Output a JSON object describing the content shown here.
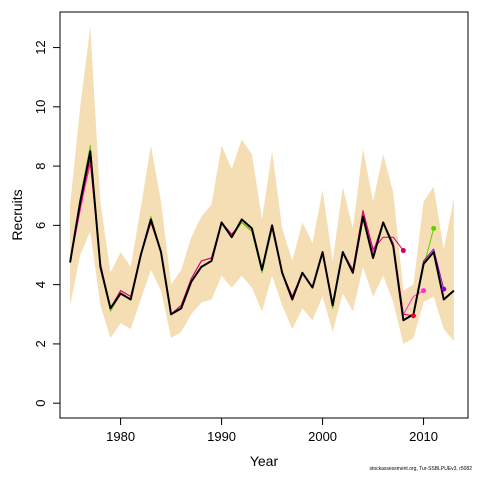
{
  "chart_data": {
    "type": "line",
    "title": "",
    "xlabel": "Year",
    "ylabel": "Recruits",
    "xlim": [
      1974.0,
      2014.4
    ],
    "ylim": [
      -0.5,
      13.2
    ],
    "xticks": [
      1980,
      1990,
      2000,
      2010
    ],
    "yticks": [
      0,
      2,
      4,
      6,
      8,
      10,
      12
    ],
    "grid": false,
    "band": {
      "color": "#f5deb3",
      "x": [
        1975,
        1976,
        1977,
        1978,
        1979,
        1980,
        1981,
        1982,
        1983,
        1984,
        1985,
        1986,
        1987,
        1988,
        1989,
        1990,
        1991,
        1992,
        1993,
        1994,
        1995,
        1996,
        1997,
        1998,
        1999,
        2000,
        2001,
        2002,
        2003,
        2004,
        2005,
        2006,
        2007,
        2008,
        2009,
        2010,
        2011,
        2012,
        2013
      ],
      "upper": [
        6.7,
        10.0,
        12.7,
        6.8,
        4.4,
        5.1,
        4.6,
        6.6,
        8.7,
        6.8,
        4.0,
        4.5,
        5.6,
        6.3,
        6.7,
        8.7,
        7.9,
        8.9,
        8.4,
        6.2,
        8.5,
        5.9,
        4.8,
        6.1,
        5.4,
        7.2,
        4.8,
        7.3,
        5.9,
        8.6,
        6.8,
        8.4,
        7.1,
        3.8,
        4.0,
        6.8,
        7.3,
        5.2,
        6.9
      ],
      "lower": [
        3.3,
        5.0,
        5.8,
        3.3,
        2.2,
        2.7,
        2.5,
        3.5,
        4.5,
        3.8,
        2.2,
        2.4,
        3.0,
        3.4,
        3.5,
        4.3,
        3.9,
        4.3,
        3.9,
        3.1,
        4.3,
        3.3,
        2.5,
        3.2,
        2.8,
        3.6,
        2.4,
        3.7,
        3.1,
        4.6,
        3.6,
        4.3,
        3.4,
        2.0,
        2.2,
        3.4,
        3.6,
        2.5,
        2.1
      ]
    },
    "series": [
      {
        "color": "#000000",
        "x": [
          1975,
          1976,
          1977,
          1978,
          1979,
          1980,
          1981,
          1982,
          1983,
          1984,
          1985,
          1986,
          1987,
          1988,
          1989,
          1990,
          1991,
          1992,
          1993,
          1994,
          1995,
          1996,
          1997,
          1998,
          1999,
          2000,
          2001,
          2002,
          2003,
          2004,
          2005,
          2006,
          2007,
          2008,
          2009,
          2010,
          2011,
          2012,
          2013
        ],
        "y": [
          4.75,
          6.8,
          8.5,
          4.6,
          3.2,
          3.7,
          3.5,
          5.0,
          6.2,
          5.1,
          3.0,
          3.2,
          4.1,
          4.6,
          4.8,
          6.1,
          5.6,
          6.2,
          5.9,
          4.5,
          6.0,
          4.4,
          3.5,
          4.4,
          3.9,
          5.1,
          3.3,
          5.1,
          4.4,
          6.3,
          4.9,
          6.1,
          5.3,
          2.8,
          3.0,
          4.7,
          5.1,
          3.5,
          3.8
        ]
      },
      {
        "color": "#e8003a",
        "x": [
          1975,
          1976,
          1977,
          1978,
          1979,
          1980,
          1981,
          1982,
          1983,
          1984,
          1985,
          1986,
          1987,
          1988,
          1989,
          1990,
          1991,
          1992,
          1993,
          1994,
          1995,
          1996,
          1997,
          1998,
          1999,
          2000,
          2001,
          2002,
          2003,
          2004,
          2005,
          2006,
          2007,
          2008,
          2009
        ],
        "y": [
          4.75,
          6.6,
          8.1,
          4.7,
          3.2,
          3.8,
          3.6,
          5.0,
          6.1,
          5.1,
          3.0,
          3.3,
          4.2,
          4.8,
          4.9,
          6.1,
          5.7,
          6.1,
          5.8,
          4.5,
          5.9,
          4.4,
          3.6,
          4.4,
          3.9,
          5.1,
          3.3,
          5.1,
          4.5,
          6.4,
          5.1,
          6.1,
          5.4,
          3.0,
          2.95
        ]
      },
      {
        "color": "#ff33cc",
        "x": [
          1975,
          1976,
          1977,
          1978,
          1979,
          1980,
          1981,
          1982,
          1983,
          1984,
          1985,
          1986,
          1987,
          1988,
          1989,
          1990,
          1991,
          1992,
          1993,
          1994,
          1995,
          1996,
          1997,
          1998,
          1999,
          2000,
          2001,
          2002,
          2003,
          2004,
          2005,
          2006,
          2007,
          2008,
          2009,
          2010
        ],
        "y": [
          4.75,
          6.5,
          8.2,
          4.7,
          3.2,
          3.8,
          3.6,
          5.0,
          6.1,
          5.1,
          3.0,
          3.3,
          4.2,
          4.8,
          4.9,
          6.1,
          5.7,
          6.1,
          5.8,
          4.5,
          5.9,
          4.4,
          3.6,
          4.4,
          3.9,
          5.1,
          3.3,
          5.1,
          4.5,
          6.4,
          5.1,
          6.1,
          5.4,
          3.0,
          3.6,
          3.8
        ]
      },
      {
        "color": "#cc0066",
        "x": [
          1975,
          1976,
          1977,
          1978,
          1979,
          1980,
          1981,
          1982,
          1983,
          1984,
          1985,
          1986,
          1987,
          1988,
          1989,
          1990,
          1991,
          1992,
          1993,
          1994,
          1995,
          1996,
          1997,
          1998,
          1999,
          2000,
          2001,
          2002,
          2003,
          2004,
          2005,
          2006,
          2007,
          2008
        ],
        "y": [
          4.75,
          6.6,
          8.3,
          4.7,
          3.2,
          3.8,
          3.6,
          5.0,
          6.1,
          5.1,
          3.0,
          3.3,
          4.2,
          4.8,
          4.9,
          6.1,
          5.7,
          6.1,
          5.8,
          4.5,
          5.9,
          4.4,
          3.6,
          4.4,
          3.9,
          5.1,
          3.3,
          5.1,
          4.5,
          6.5,
          5.2,
          5.6,
          5.6,
          5.15
        ]
      },
      {
        "color": "#66cc00",
        "x": [
          1975,
          1976,
          1977,
          1978,
          1979,
          1980,
          1981,
          1982,
          1983,
          1984,
          1985,
          1986,
          1987,
          1988,
          1989,
          1990,
          1991,
          1992,
          1993,
          1994,
          1995,
          1996,
          1997,
          1998,
          1999,
          2000,
          2001,
          2002,
          2003,
          2004,
          2005,
          2006,
          2007,
          2008,
          2009,
          2010,
          2011
        ],
        "y": [
          4.75,
          6.9,
          8.7,
          4.6,
          3.1,
          3.7,
          3.5,
          5.0,
          6.3,
          5.1,
          3.0,
          3.2,
          4.1,
          4.6,
          4.8,
          6.1,
          5.6,
          6.1,
          5.8,
          4.4,
          5.9,
          4.4,
          3.5,
          4.4,
          3.9,
          5.1,
          3.2,
          5.1,
          4.4,
          6.2,
          4.9,
          6.1,
          5.3,
          2.8,
          3.0,
          4.6,
          5.9
        ]
      },
      {
        "color": "#8800cc",
        "x": [
          1975,
          1976,
          1977,
          1978,
          1979,
          1980,
          1981,
          1982,
          1983,
          1984,
          1985,
          1986,
          1987,
          1988,
          1989,
          1990,
          1991,
          1992,
          1993,
          1994,
          1995,
          1996,
          1997,
          1998,
          1999,
          2000,
          2001,
          2002,
          2003,
          2004,
          2005,
          2006,
          2007,
          2008,
          2009,
          2010,
          2011,
          2012
        ],
        "y": [
          4.75,
          6.8,
          8.5,
          4.6,
          3.2,
          3.7,
          3.5,
          5.0,
          6.2,
          5.1,
          3.0,
          3.2,
          4.1,
          4.6,
          4.8,
          6.1,
          5.6,
          6.2,
          5.9,
          4.5,
          6.0,
          4.4,
          3.5,
          4.4,
          3.9,
          5.1,
          3.3,
          5.1,
          4.4,
          6.3,
          4.9,
          6.1,
          5.3,
          2.8,
          3.0,
          4.8,
          5.2,
          3.85
        ]
      }
    ],
    "endpoints": [
      {
        "color": "#cc0066",
        "x": 2008,
        "y": 5.15
      },
      {
        "color": "#e8003a",
        "x": 2009,
        "y": 2.95
      },
      {
        "color": "#ff33cc",
        "x": 2010,
        "y": 3.8
      },
      {
        "color": "#66cc00",
        "x": 2011,
        "y": 5.9
      },
      {
        "color": "#8800cc",
        "x": 2012,
        "y": 3.85
      }
    ]
  },
  "footer_text": "stockassessment.org, Tur-SSBLPUEv3, r5082"
}
